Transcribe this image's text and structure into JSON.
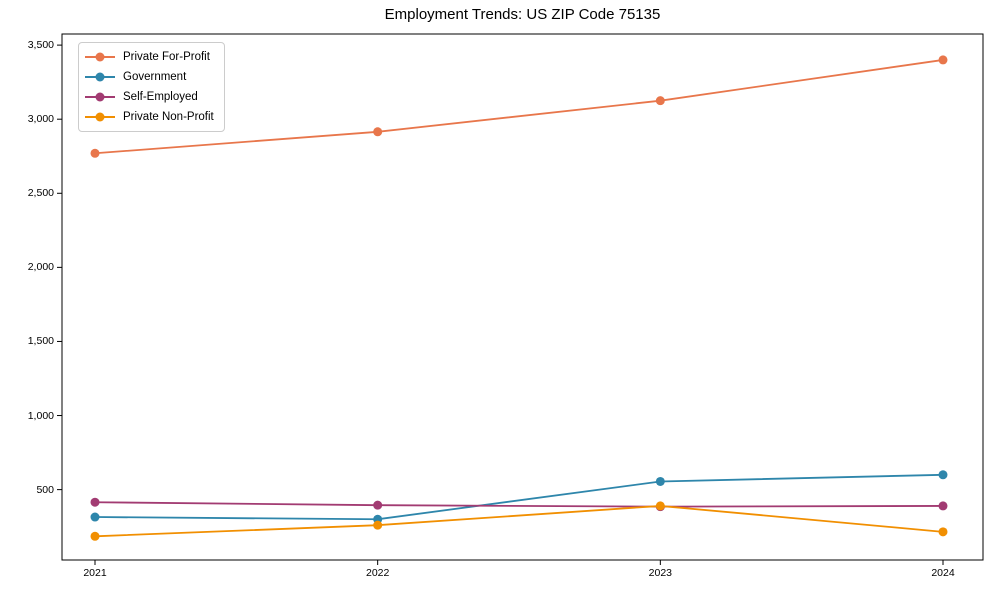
{
  "chart_data": {
    "type": "line",
    "title": "Employment Trends: US ZIP Code 75135",
    "categories": [
      "2021",
      "2022",
      "2023",
      "2024"
    ],
    "series": [
      {
        "name": "Private For-Profit",
        "color": "#E8764B",
        "values": [
          2770,
          2915,
          3125,
          3400
        ]
      },
      {
        "name": "Government",
        "color": "#2E86AB",
        "values": [
          315,
          300,
          555,
          600
        ]
      },
      {
        "name": "Self-Employed",
        "color": "#A23B72",
        "values": [
          415,
          395,
          385,
          390
        ]
      },
      {
        "name": "Private Non-Profit",
        "color": "#F18F01",
        "values": [
          185,
          260,
          390,
          215
        ]
      }
    ],
    "xlabel": "",
    "ylabel": "",
    "ylim": [
      25,
      3575
    ],
    "yticks": [
      500,
      1000,
      1500,
      2000,
      2500,
      3000,
      3500
    ],
    "ytick_labels": [
      "500",
      "1,000",
      "1,500",
      "2,000",
      "2,500",
      "3,000",
      "3,500"
    ],
    "grid": false,
    "legend_position": "upper left",
    "marker": "circle",
    "axis_color": "#000000",
    "background_color": "#ffffff"
  }
}
